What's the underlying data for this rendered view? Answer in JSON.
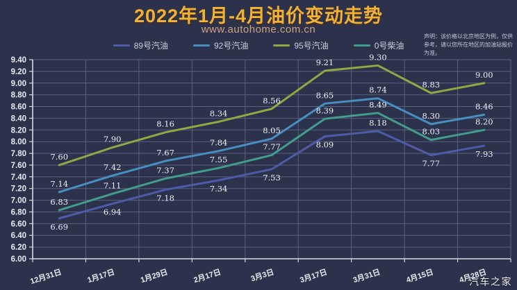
{
  "page": {
    "title": "2022年1月-4月油价变动走势",
    "subtitle": "www.autohome.com.cn",
    "disclaimer": "声明：该价格以北京地区为例，仅供参考，请以您所在地区的加油站报价为准。",
    "watermark": "汽车之家"
  },
  "colors": {
    "background": "#2d324c",
    "title": "#efb234",
    "subtitle": "#d0a17c",
    "axis_line": "#d9dce6",
    "grid_line": "#596080",
    "tick_label": "#e9ebf2",
    "data_label": "#edeff6",
    "legend_label": "#ccd0dd"
  },
  "chart_data": {
    "type": "line",
    "title": "2022年1月-4月油价变动走势",
    "xlabel": "",
    "ylabel": "",
    "categories": [
      "12月31日",
      "1月17日",
      "1月29日",
      "2月17日",
      "3月3日",
      "3月17日",
      "3月31日",
      "4月15日",
      "4月28日"
    ],
    "series": [
      {
        "name": "89号汽油",
        "color": "#4d5ba8",
        "values": [
          6.69,
          6.94,
          7.18,
          7.34,
          7.53,
          8.09,
          8.18,
          7.77,
          7.93
        ],
        "label_side": [
          "below",
          "below",
          "below",
          "below",
          "below",
          "below",
          "above",
          "below",
          "below"
        ]
      },
      {
        "name": "92号汽油",
        "color": "#4690c0",
        "values": [
          7.14,
          7.42,
          7.67,
          7.84,
          8.05,
          8.65,
          8.74,
          8.3,
          8.46
        ],
        "label_side": [
          "above",
          "above",
          "above",
          "above",
          "above",
          "above",
          "above",
          "above",
          "above"
        ]
      },
      {
        "name": "95号汽油",
        "color": "#93a844",
        "values": [
          7.6,
          7.9,
          8.16,
          8.34,
          8.56,
          9.21,
          9.3,
          8.83,
          9.0
        ],
        "label_side": [
          "above",
          "above",
          "above",
          "above",
          "above",
          "above",
          "above",
          "above",
          "above"
        ]
      },
      {
        "name": "0号柴油",
        "color": "#429d8b",
        "values": [
          6.83,
          7.11,
          7.37,
          7.55,
          7.77,
          8.39,
          8.49,
          8.03,
          8.2
        ],
        "label_side": [
          "above",
          "above",
          "above",
          "above",
          "above",
          "above",
          "above",
          "above",
          "above"
        ]
      }
    ],
    "ylim": [
      6.0,
      9.4
    ],
    "ytick_step": 0.2,
    "grid": true,
    "legend_position": "top"
  }
}
